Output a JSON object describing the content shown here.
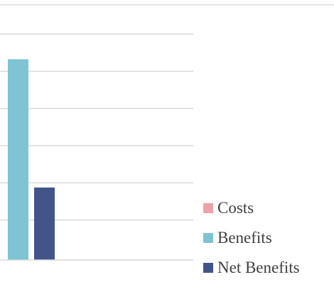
{
  "chart_data": {
    "type": "bar",
    "categories": [
      ""
    ],
    "series": [
      {
        "name": "Costs",
        "values": [
          0
        ],
        "color": "#eaa4a9"
      },
      {
        "name": "Benefits",
        "values": [
          5.4
        ],
        "color": "#7fc4d2"
      },
      {
        "name": "Net Benefits",
        "values": [
          1.95
        ],
        "color": "#41558a"
      }
    ],
    "title": "",
    "xlabel": "",
    "ylabel": "",
    "ylim": [
      0,
      6
    ],
    "ytick_step": 1,
    "grid": true,
    "legend_position": "bottom-right"
  }
}
